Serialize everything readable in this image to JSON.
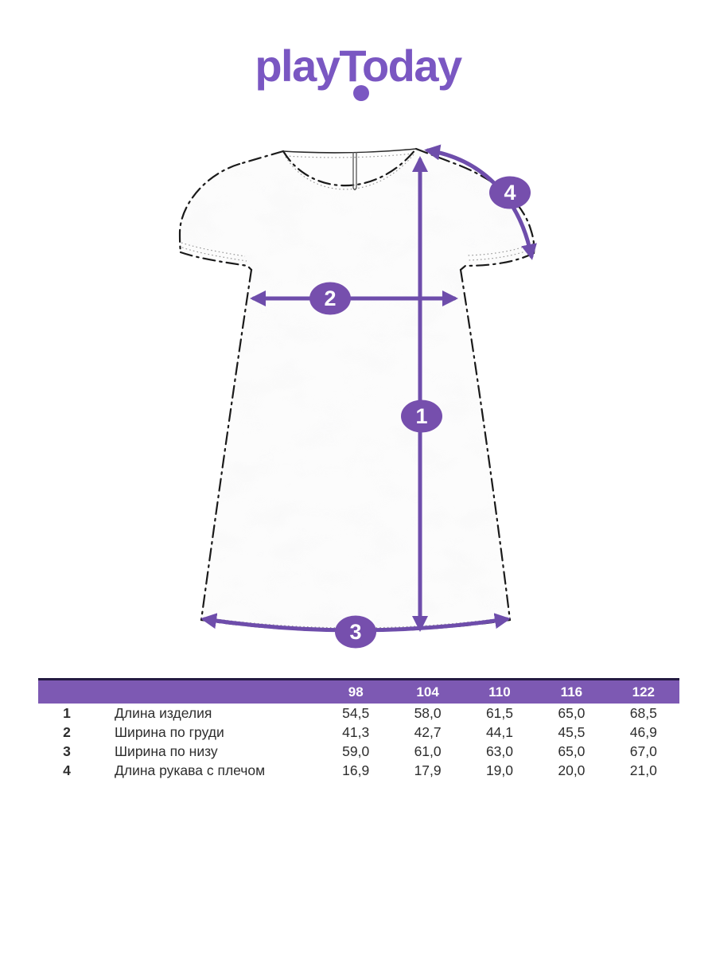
{
  "brand": {
    "logo_text": "playToday"
  },
  "colors": {
    "logo_purple": "#7a57c2",
    "arrow_purple": "#6e4dab",
    "marker_purple": "#764fad",
    "table_header_purple": "#7d59b3",
    "table_top_rule": "#241a41",
    "outline_black": "#1a1a1a"
  },
  "diagram": {
    "garment": "short-sleeve a-line dress sketch",
    "markers": [
      {
        "label": "1"
      },
      {
        "label": "2"
      },
      {
        "label": "3"
      },
      {
        "label": "4"
      }
    ]
  },
  "size_table": {
    "columns": [
      "98",
      "104",
      "110",
      "116",
      "122"
    ],
    "rows": [
      {
        "num": "1",
        "label": "Длина изделия",
        "values": [
          "54,5",
          "58,0",
          "61,5",
          "65,0",
          "68,5"
        ]
      },
      {
        "num": "2",
        "label": "Ширина по груди",
        "values": [
          "41,3",
          "42,7",
          "44,1",
          "45,5",
          "46,9"
        ]
      },
      {
        "num": "3",
        "label": "Ширина по низу",
        "values": [
          "59,0",
          "61,0",
          "63,0",
          "65,0",
          "67,0"
        ]
      },
      {
        "num": "4",
        "label": "Длина рукава с плечом",
        "values": [
          "16,9",
          "17,9",
          "19,0",
          "20,0",
          "21,0"
        ]
      }
    ]
  }
}
